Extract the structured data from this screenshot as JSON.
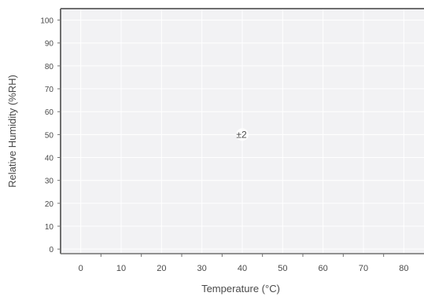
{
  "chart_data": {
    "type": "scatter",
    "title": "",
    "xlabel": "Temperature (°C)",
    "ylabel": "Relative Humidity (%RH)",
    "xlim": [
      -5,
      85
    ],
    "ylim": [
      -2,
      105
    ],
    "xticks": [
      0,
      10,
      20,
      30,
      40,
      50,
      60,
      70,
      80
    ],
    "yticks": [
      0,
      10,
      20,
      30,
      40,
      50,
      60,
      70,
      80,
      90,
      100
    ],
    "grid": true,
    "legend": "none",
    "colors": {
      "plot_bg": "#f2f2f4",
      "axis": "#6e6e6e",
      "grid": "#ffffff",
      "text": "#4a4a4a",
      "marker": "#ffffff"
    },
    "points": [
      {
        "x": 40,
        "y": 50,
        "label": "±2"
      }
    ]
  }
}
